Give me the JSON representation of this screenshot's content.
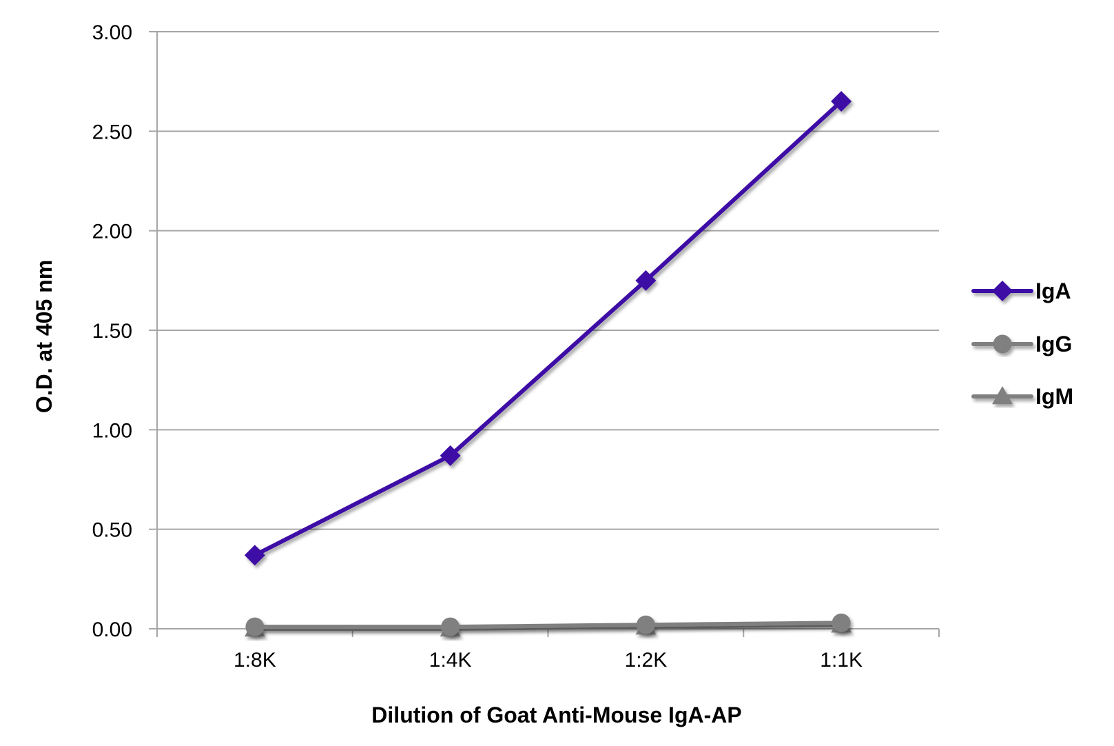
{
  "chart_data": {
    "type": "line",
    "title": "",
    "xlabel": "Dilution of Goat Anti-Mouse IgA-AP",
    "ylabel": "O.D. at 405 nm",
    "categories": [
      "1:8K",
      "1:4K",
      "1:2K",
      "1:1K"
    ],
    "ylim": [
      0,
      3
    ],
    "yticks": [
      "0.00",
      "0.50",
      "1.00",
      "1.50",
      "2.00",
      "2.50",
      "3.00"
    ],
    "ytick_values": [
      0,
      0.5,
      1,
      1.5,
      2,
      2.5,
      3
    ],
    "grid": true,
    "legend_position": "right",
    "series": [
      {
        "name": "IgA",
        "values": [
          0.37,
          0.87,
          1.75,
          2.65
        ],
        "color": "#3D0EA6",
        "marker": "diamond"
      },
      {
        "name": "IgG",
        "values": [
          0.01,
          0.01,
          0.02,
          0.03
        ],
        "color": "#808080",
        "marker": "circle"
      },
      {
        "name": "IgM",
        "values": [
          0.0,
          0.0,
          0.01,
          0.02
        ],
        "color": "#808080",
        "marker": "triangle"
      }
    ]
  }
}
